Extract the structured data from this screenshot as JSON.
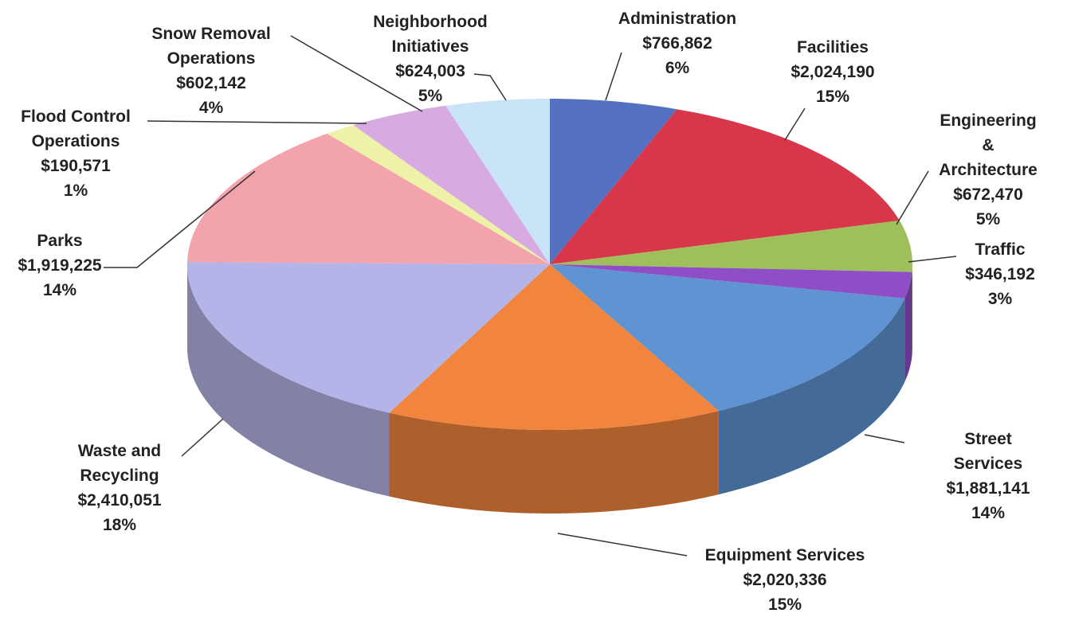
{
  "chart_data": {
    "type": "pie",
    "categories": [
      "Administration",
      "Facilities",
      "Engineering &\nArchitecture",
      "Traffic",
      "Street Services",
      "Equipment Services",
      "Waste and\nRecycling",
      "Parks",
      "Flood Control\nOperations",
      "Snow Removal\nOperations",
      "Neighborhood\nInitiatives"
    ],
    "values": [
      766862,
      2024190,
      672470,
      346192,
      1881141,
      2020336,
      2410051,
      1919225,
      190571,
      602142,
      624003
    ],
    "value_labels": [
      "$766,862",
      "$2,024,190",
      "$672,470",
      "$346,192",
      "$1,881,141",
      "$2,020,336",
      "$2,410,051",
      "$1,919,225",
      "$190,571",
      "$602,142",
      "$624,003"
    ],
    "percent_labels": [
      "6%",
      "15%",
      "5%",
      "3%",
      "14%",
      "15%",
      "18%",
      "14%",
      "1%",
      "4%",
      "5%"
    ],
    "colors": [
      "#5470c0",
      "#d8374b",
      "#9fbe5c",
      "#8e4ec6",
      "#5f93d2",
      "#f2853d",
      "#b4b4e8",
      "#f3a3ac",
      "#eef2a8",
      "#d7aae2",
      "#c8e4f6"
    ]
  }
}
